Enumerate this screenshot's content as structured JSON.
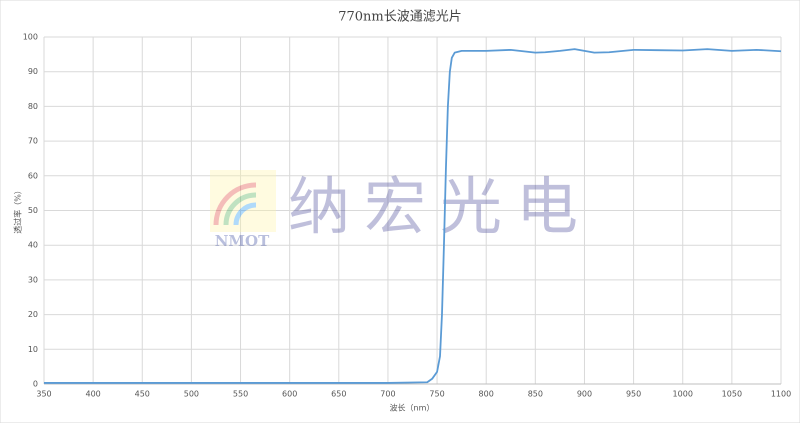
{
  "chart_data": {
    "type": "line",
    "title": "770nm长波通滤光片",
    "x_label": "波长（nm）",
    "y_label": "透过率（%）",
    "watermark": "纳宏光电",
    "watermark_logo": "NMOT",
    "x": [
      350,
      400,
      450,
      500,
      550,
      600,
      650,
      700,
      740,
      745,
      750,
      753,
      755,
      757,
      759,
      761,
      763,
      765,
      768,
      775,
      800,
      825,
      850,
      860,
      875,
      890,
      910,
      925,
      950,
      975,
      1000,
      1025,
      1050,
      1075,
      1100
    ],
    "series": [
      {
        "name": "770nm",
        "color": "#5b9bd5",
        "values": [
          0.3,
          0.3,
          0.3,
          0.3,
          0.3,
          0.3,
          0.3,
          0.3,
          0.5,
          1.5,
          3.5,
          8,
          20,
          40,
          62,
          80,
          90,
          94,
          95.5,
          96,
          96,
          96.3,
          95.5,
          95.6,
          96,
          96.5,
          95.5,
          95.6,
          96.3,
          96.2,
          96.1,
          96.5,
          96,
          96.3,
          95.9
        ]
      }
    ],
    "xlim": [
      350,
      1100
    ],
    "ylim": [
      0,
      100
    ],
    "xticks": [
      350,
      400,
      450,
      500,
      550,
      600,
      650,
      700,
      750,
      800,
      850,
      900,
      950,
      1000,
      1050,
      1100
    ],
    "yticks": [
      0,
      10,
      20,
      30,
      40,
      50,
      60,
      70,
      80,
      90,
      100
    ],
    "grid": true
  }
}
